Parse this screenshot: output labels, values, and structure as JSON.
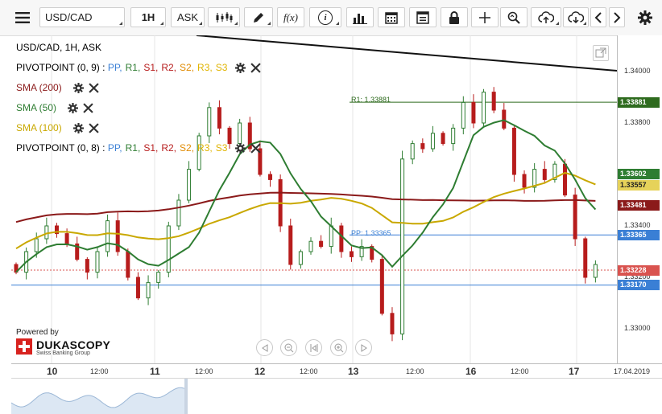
{
  "toolbar": {
    "menu_icon": "hamburger-menu-icon",
    "instrument": "USD/CAD",
    "timeframe": "1H",
    "side": "ASK",
    "items": [
      "candle-type-icon",
      "draw-pencil-icon",
      "function-icon",
      "info-icon",
      "volume-bars-icon",
      "calendar-icon",
      "report-icon",
      "lock-icon",
      "crosshair-icon",
      "zoom-icon",
      "cloud-upload-icon",
      "cloud-download-icon",
      "chevron-left-icon",
      "chevron-right-icon",
      "gear-icon"
    ],
    "function_label": "f(x)",
    "info_label": "i"
  },
  "legend": {
    "title": "USD/CAD, 1H, ASK",
    "pivot1": {
      "name": "PIVOTPOINT (0, 9)",
      "sep": " : "
    },
    "pivot2": {
      "name": "PIVOTPOINT (0, 8)",
      "sep": " : "
    },
    "pivot_levels": [
      {
        "label": "PP,",
        "color": "#3a7fd5"
      },
      {
        "label": "R1,",
        "color": "#2e7d32"
      },
      {
        "label": "S1,",
        "color": "#b71c1c"
      },
      {
        "label": "R2,",
        "color": "#b71c1c"
      },
      {
        "label": "S2,",
        "color": "#e08a00"
      },
      {
        "label": "R3,",
        "color": "#e0b400"
      },
      {
        "label": "S3",
        "color": "#e0b400"
      }
    ],
    "sma200": {
      "label": "SMA (200)",
      "color": "#8b1a1a"
    },
    "sma50": {
      "label": "SMA (50)",
      "color": "#2e7d32"
    },
    "sma100": {
      "label": "SMA (100)",
      "color": "#c9a800"
    }
  },
  "chart_labels": {
    "r1": "R1: 1.33881",
    "pp": "PP: 1.33365"
  },
  "price_axis": {
    "ticks": [
      "1.34000",
      "1.33800",
      "1.33600",
      "1.33400",
      "1.33200",
      "1.33000"
    ],
    "tags": [
      {
        "value": "1.33881",
        "bg": "#2e6b1e",
        "fg": "#ffffff"
      },
      {
        "value": "1.33602",
        "bg": "#2e7d32",
        "fg": "#ffffff"
      },
      {
        "value": "1.33557",
        "bg": "#e6d25a",
        "fg": "#222222"
      },
      {
        "value": "1.33481",
        "bg": "#8b1a1a",
        "fg": "#ffffff"
      },
      {
        "value": "1.33365",
        "bg": "#3a7fd5",
        "fg": "#ffffff"
      },
      {
        "value": "1.33228",
        "bg": "#d9534f",
        "fg": "#ffffff"
      },
      {
        "value": "1.33170",
        "bg": "#3a7fd5",
        "fg": "#ffffff"
      }
    ]
  },
  "time_axis": {
    "labels": [
      {
        "text": "10",
        "big": true
      },
      {
        "text": "12:00",
        "big": false
      },
      {
        "text": "11",
        "big": true
      },
      {
        "text": "12:00",
        "big": false
      },
      {
        "text": "12",
        "big": true
      },
      {
        "text": "12:00",
        "big": false
      },
      {
        "text": "13",
        "big": true
      },
      {
        "text": "12:00",
        "big": false
      },
      {
        "text": "16",
        "big": true
      },
      {
        "text": "12:00",
        "big": false
      },
      {
        "text": "17",
        "big": true
      },
      {
        "text": "17.04.2019",
        "big": false
      }
    ]
  },
  "branding": {
    "powered": "Powered by",
    "name": "DUKASCOPY",
    "sub": "Swiss Banking Group"
  },
  "colors": {
    "bull": "#2e7d32",
    "bear": "#b71c1c",
    "trendline": "#111111",
    "sma200": "#8b1a1a",
    "sma50": "#2e7d32",
    "sma100": "#c9a800",
    "r1": "#2e6b1e",
    "pp": "#3a7fd5",
    "last": "#d9534f"
  },
  "chart_data": {
    "type": "candlestick",
    "instrument": "USD/CAD",
    "timeframe": "1H",
    "ylim": [
      1.3295,
      1.3406
    ],
    "levels": {
      "R1": 1.33881,
      "PP": 1.33365,
      "S1": 1.3317,
      "last": 1.33228
    },
    "indicators": {
      "SMA200": 1.33481,
      "SMA50": 1.33602,
      "SMA100": 1.33557
    },
    "close_path": [
      1.3322,
      1.333,
      1.3335,
      1.334,
      1.3337,
      1.3333,
      1.3327,
      1.3322,
      1.333,
      1.3342,
      1.333,
      1.332,
      1.3312,
      1.3318,
      1.3322,
      1.334,
      1.335,
      1.3362,
      1.3375,
      1.3386,
      1.3378,
      1.3372,
      1.338,
      1.337,
      1.336,
      1.3358,
      1.334,
      1.3325,
      1.333,
      1.3334,
      1.3332,
      1.334,
      1.333,
      1.3328,
      1.3332,
      1.3327,
      1.3306,
      1.3298,
      1.3366,
      1.3372,
      1.337,
      1.3376,
      1.3372,
      1.3378,
      1.3388,
      1.338,
      1.3392,
      1.3385,
      1.3378,
      1.336,
      1.3355,
      1.3362,
      1.3358,
      1.3364,
      1.3352,
      1.3335,
      1.332,
      1.3325
    ]
  }
}
